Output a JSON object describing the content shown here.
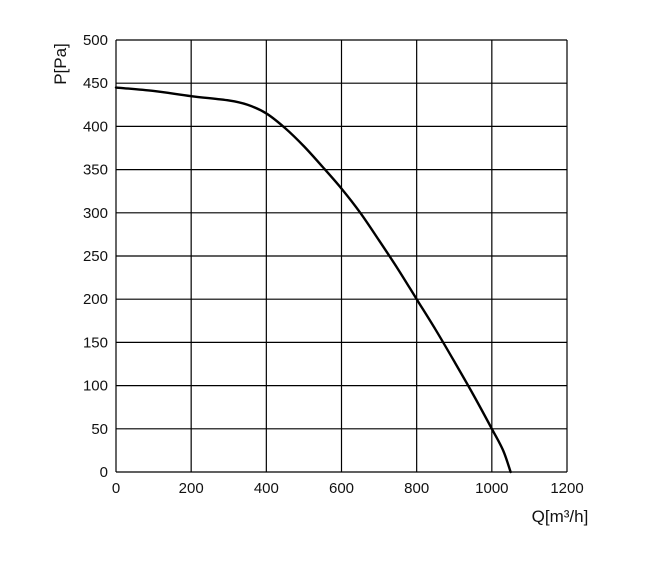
{
  "chart_data": {
    "type": "line",
    "title": "",
    "xlabel": "Q[m³/h]",
    "ylabel": "P[Pa]",
    "xlim": [
      0,
      1200
    ],
    "ylim": [
      0,
      500
    ],
    "xticks": [
      0,
      200,
      400,
      600,
      800,
      1000,
      1200
    ],
    "yticks": [
      0,
      50,
      100,
      150,
      200,
      250,
      300,
      350,
      400,
      450,
      500
    ],
    "grid": true,
    "legend": "none",
    "colors": {
      "line": "#000000",
      "grid": "#000000",
      "background": "#ffffff"
    },
    "series": [
      {
        "x": [
          0,
          100,
          200,
          300,
          350,
          400,
          450,
          500,
          550,
          600,
          650,
          700,
          750,
          800,
          850,
          900,
          950,
          1000,
          1030,
          1050
        ],
        "y": [
          445,
          441,
          435,
          430,
          425,
          415,
          398,
          377,
          353,
          328,
          300,
          268,
          235,
          200,
          165,
          128,
          90,
          50,
          25,
          0
        ]
      }
    ]
  }
}
